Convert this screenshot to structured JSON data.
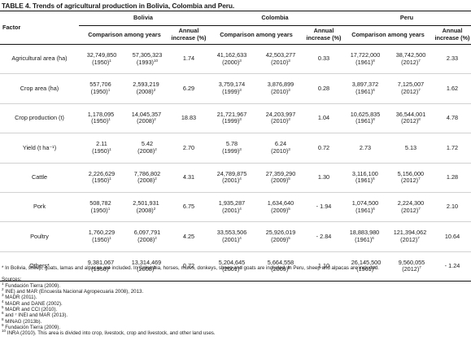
{
  "title": "TABLE 4. Trends of agricultural production in Bolivia, Colombia and Peru.",
  "header": {
    "factor": "Factor",
    "countries": [
      "Bolivia",
      "Colombia",
      "Peru"
    ],
    "comparison": "Comparison among years",
    "annual_line1": "Annual",
    "annual_line2": "increase (%)"
  },
  "rows": [
    {
      "factor": "Agricultural area (ha)",
      "bolivia": {
        "a": "32,749,850",
        "a_yr": "(1950)",
        "a_sup": "1",
        "b": "57,305,323",
        "b_yr": "(1993)",
        "b_sup": "10",
        "inc": "1.74"
      },
      "colombia": {
        "a": "41,162,633",
        "a_yr": "(2000)",
        "a_sup": "3",
        "b": "42,503,277",
        "b_yr": "(2010)",
        "b_sup": "3",
        "inc": "0.33"
      },
      "peru": {
        "a": "17,722,000",
        "a_yr": "(1961)",
        "a_sup": "8",
        "b": "38,742,500",
        "b_yr": "(2012)",
        "b_sup": "7",
        "inc": "2.33"
      }
    },
    {
      "factor": "Crop area (ha)",
      "bolivia": {
        "a": "557,706",
        "a_yr": "(1950)",
        "a_sup": "1",
        "b": "2,593,219",
        "b_yr": "(2008)",
        "b_sup": "2",
        "inc": "6.29"
      },
      "colombia": {
        "a": "3,759,174",
        "a_yr": "(1999)",
        "a_sup": "3",
        "b": "3,876,899",
        "b_yr": "(2010)",
        "b_sup": "3",
        "inc": "0.28"
      },
      "peru": {
        "a": "3,897,372",
        "a_yr": "(1961)",
        "a_sup": "6",
        "b": "7,125,007",
        "b_yr": "(2012)",
        "b_sup": "7",
        "inc": "1.62"
      }
    },
    {
      "factor": "Crop production (t)",
      "bolivia": {
        "a": "1,178,095",
        "a_yr": "(1950)",
        "a_sup": "1",
        "b": "14,045,357",
        "b_yr": "(2008)",
        "b_sup": "2",
        "inc": "18.83"
      },
      "colombia": {
        "a": "21,721,967",
        "a_yr": "(1999)",
        "a_sup": "3",
        "b": "24,203,997",
        "b_yr": "(2010)",
        "b_sup": "3",
        "inc": "1.04"
      },
      "peru": {
        "a": "10,625,835",
        "a_yr": "(1961)",
        "a_sup": "8",
        "b": "36,544,001",
        "b_yr": "(2012)",
        "b_sup": "8",
        "inc": "4.78"
      }
    },
    {
      "factor": "Yield (t ha⁻¹)",
      "bolivia": {
        "a": "2.11",
        "a_yr": "(1950)",
        "a_sup": "1",
        "b": "5.42",
        "b_yr": "(2008)",
        "b_sup": "2",
        "inc": "2.70"
      },
      "colombia": {
        "a": "5.78",
        "a_yr": "(1999)",
        "a_sup": "3",
        "b": "6.24",
        "b_yr": "(2010)",
        "b_sup": "3",
        "inc": "0.72"
      },
      "peru": {
        "a": "2.73",
        "a_yr": "",
        "a_sup": "",
        "b": "5.13",
        "b_yr": "",
        "b_sup": "",
        "inc": "1.72"
      }
    },
    {
      "factor": "Cattle",
      "bolivia": {
        "a": "2,226,629",
        "a_yr": "(1950)",
        "a_sup": "1",
        "b": "7,786,802",
        "b_yr": "(2008)",
        "b_sup": "2",
        "inc": "4.31"
      },
      "colombia": {
        "a": "24,789,875",
        "a_yr": "(2001)",
        "a_sup": "4",
        "b": "27,359,290",
        "b_yr": "(2009)",
        "b_sup": "5",
        "inc": "1.30"
      },
      "peru": {
        "a": "3,116,100",
        "a_yr": "(1961)",
        "a_sup": "6",
        "b": "5,156,000",
        "b_yr": "(2012)",
        "b_sup": "7",
        "inc": "1.28"
      }
    },
    {
      "factor": "Pork",
      "bolivia": {
        "a": "508,782",
        "a_yr": "(1950)",
        "a_sup": "1",
        "b": "2,501,931",
        "b_yr": "(2008)",
        "b_sup": "2",
        "inc": "6.75"
      },
      "colombia": {
        "a": "1,935,287",
        "a_yr": "(2001)",
        "a_sup": "4",
        "b": "1,634,640",
        "b_yr": "(2009)",
        "b_sup": "5",
        "inc": "- 1.94"
      },
      "peru": {
        "a": "1,074,500",
        "a_yr": "(1961)",
        "a_sup": "6",
        "b": "2,224,300",
        "b_yr": "(2012)",
        "b_sup": "7",
        "inc": "2.10"
      }
    },
    {
      "factor": "Poultry",
      "bolivia": {
        "a": "1,760,229",
        "a_yr": "(1950)",
        "a_sup": "1",
        "b": "6,097,791",
        "b_yr": "(2008)",
        "b_sup": "2",
        "inc": "4.25"
      },
      "colombia": {
        "a": "33,553,506",
        "a_yr": "(2001)",
        "a_sup": "4",
        "b": "25,926,019",
        "b_yr": "(2009)",
        "b_sup": "5",
        "inc": "- 2.84"
      },
      "peru": {
        "a": "18,883,980",
        "a_yr": "(1961)",
        "a_sup": "6",
        "b": "121,394,062",
        "b_yr": "(2012)",
        "b_sup": "7",
        "inc": "10.64"
      }
    },
    {
      "factor": "Others*",
      "bolivia": {
        "a": "9,381,067",
        "a_yr": "(1950)",
        "a_sup": "1",
        "b": "13,314,469",
        "b_yr": "(2008)",
        "b_sup": "2",
        "inc": "0.72"
      },
      "colombia": {
        "a": "5,204,645",
        "a_yr": "(2001)",
        "a_sup": "4",
        "b": "5,664,558",
        "b_yr": "(2009)",
        "b_sup": "5",
        "inc": "1.10"
      },
      "peru": {
        "a": "26,145,500",
        "a_yr": "(1961)",
        "a_sup": "6",
        "b": "9,560,055",
        "b_yr": "(2012)",
        "b_sup": "7",
        "inc": "- 1.24"
      }
    }
  ],
  "footnote": "* In Bolivia, sheep, goats, lamas and alpacas are included. In Colombia, horses, mules, donkeys, sheep and goats are included. In Peru, sheep and alpacas are included.",
  "sources_label": "Sources:",
  "sources": [
    {
      "sup": "1",
      "text": "Fundación Tierra (2009)."
    },
    {
      "sup": "2",
      "text": "INE) and MAR (Encuesta Nacional Agropecuaria 2008), 2013."
    },
    {
      "sup": "3",
      "text": "MADR (2011)."
    },
    {
      "sup": "4",
      "text": "MADR and DANE (2002)."
    },
    {
      "sup": "5",
      "text": "MADR and CCI (2010)."
    },
    {
      "sup": "6",
      "text": "and ⁷ INEI and MAR (2013)."
    },
    {
      "sup": "8",
      "text": "MINAG (2013b)."
    },
    {
      "sup": "9",
      "text": "Fundación Tierra (2009)."
    },
    {
      "sup": "10",
      "text": "INRA (2010). This area is divided into crop, livestock, crop and livestock, and other land uses."
    }
  ]
}
